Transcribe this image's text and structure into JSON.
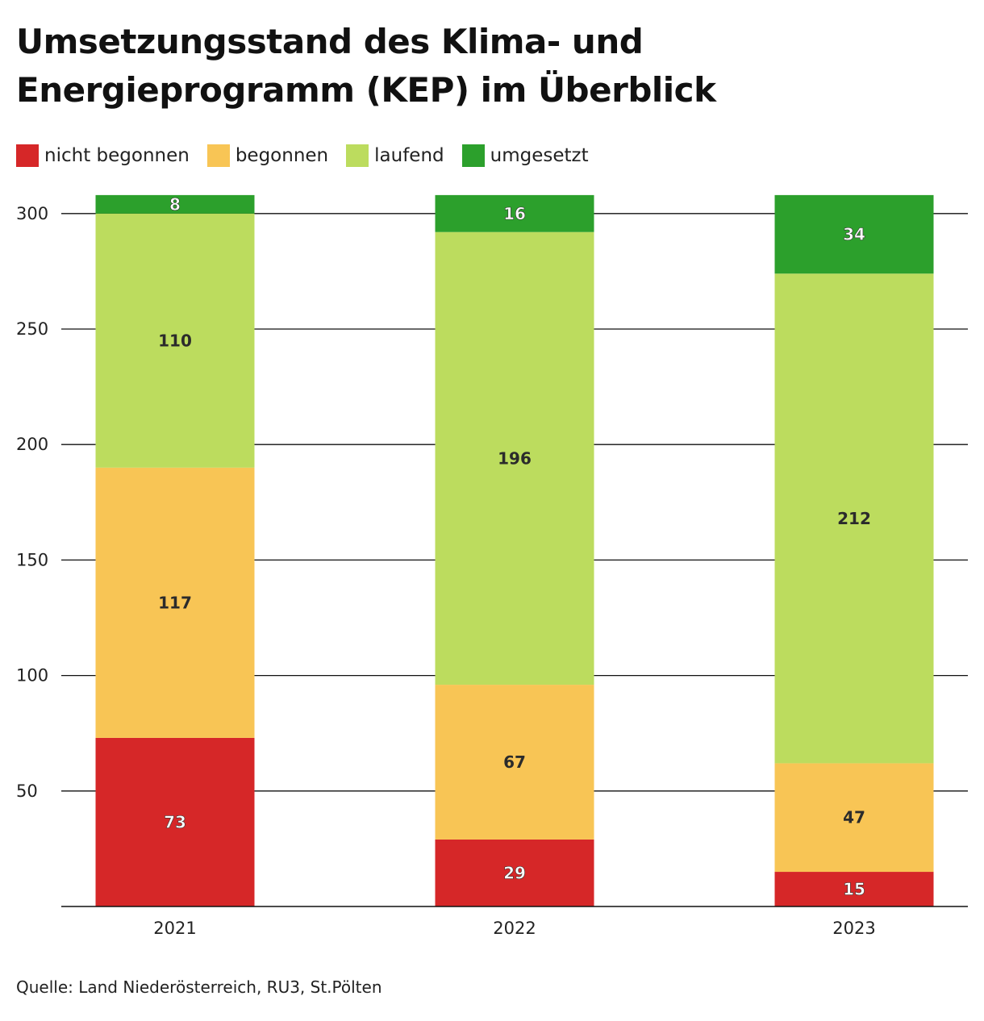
{
  "chart_data": {
    "type": "bar",
    "stacked": true,
    "title": "Umsetzungsstand des Klima- und Energieprogramm (KEP) im Überblick",
    "categories": [
      "2021",
      "2022",
      "2023"
    ],
    "series": [
      {
        "name": "nicht begonnen",
        "color": "#d62728",
        "values": [
          73,
          29,
          15
        ]
      },
      {
        "name": "begonnen",
        "color": "#f8c555",
        "values": [
          117,
          67,
          47
        ]
      },
      {
        "name": "laufend",
        "color": "#bcdc5e",
        "values": [
          110,
          196,
          212
        ]
      },
      {
        "name": "umgesetzt",
        "color": "#2ca02c",
        "values": [
          8,
          16,
          34
        ]
      }
    ],
    "yticks": [
      50,
      100,
      150,
      200,
      250,
      300
    ],
    "ylim": [
      0,
      308
    ],
    "grid": true,
    "legend_position": "top-left",
    "source": "Quelle: Land Niederösterreich, RU3, St.Pölten"
  }
}
